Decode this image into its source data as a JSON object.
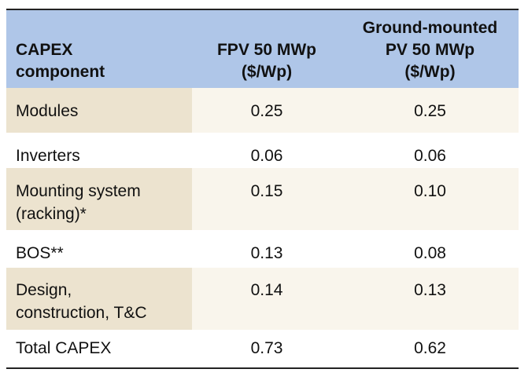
{
  "table": {
    "headers": {
      "component": [
        "CAPEX",
        "component"
      ],
      "fpv": [
        "FPV 50 MWp",
        "($/Wp)"
      ],
      "ground": [
        "Ground-mounted",
        "PV 50 MWp",
        "($/Wp)"
      ]
    },
    "rows": [
      {
        "label": [
          "Modules"
        ],
        "fpv": "0.25",
        "ground": "0.25"
      },
      {
        "label": [
          "Inverters"
        ],
        "fpv": "0.06",
        "ground": "0.06"
      },
      {
        "label": [
          "Mounting system",
          "(racking)*"
        ],
        "fpv": "0.15",
        "ground": "0.10"
      },
      {
        "label": [
          "BOS**"
        ],
        "fpv": "0.13",
        "ground": "0.08"
      },
      {
        "label": [
          "Design,",
          "construction, T&C"
        ],
        "fpv": "0.14",
        "ground": "0.13"
      },
      {
        "label": [
          "Total CAPEX"
        ],
        "fpv": "0.73",
        "ground": "0.62"
      }
    ]
  },
  "colors": {
    "header_bg": "#afc6e8",
    "shaded_label_bg": "#ece3cf",
    "shaded_value_bg": "#f9f5ec",
    "rule": "#222222"
  }
}
